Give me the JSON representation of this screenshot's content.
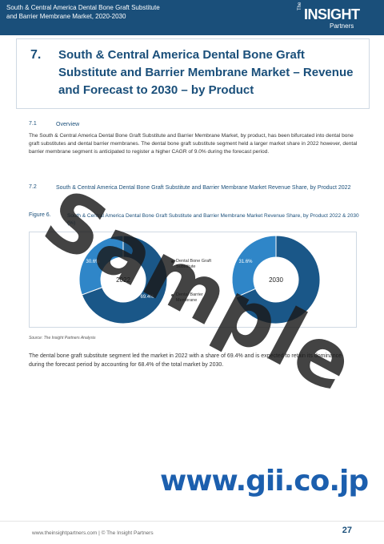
{
  "header": {
    "title": "South & Central America Dental Bone Graft Substitute and Barrier Membrane Market, 2020-2030",
    "logo_the": "The",
    "logo_insight": "INSIGHT",
    "logo_partners": "Partners"
  },
  "chapter": {
    "number": "7.",
    "title": "South & Central America Dental Bone Graft Substitute and Barrier Membrane Market – Revenue and Forecast to 2030 – by Product"
  },
  "section_71": {
    "number": "7.1",
    "title": "Overview",
    "text": "The South & Central America Dental Bone Graft Substitute and Barrier Membrane Market, by product, has been bifurcated into dental bone graft substitutes and dental barrier membranes. The dental bone graft substitute segment held a larger market share in 2022 however, dental barrier membrane segment is anticipated to register a higher CAGR of 9.0% during the forecast period."
  },
  "section_72": {
    "number": "7.2",
    "title": "South & Central America Dental Bone Graft Substitute and Barrier Membrane Market Revenue Share, by Product 2022"
  },
  "figure": {
    "label": "Figure 6.",
    "title": "South & Central America Dental Bone Graft Substitute and Barrier Membrane Market Revenue Share, by Product 2022 & 2030 (%)",
    "source": "Source: The Insight Partners Analysis"
  },
  "chart_data": [
    {
      "type": "pie",
      "center_label": "2022",
      "categories": [
        "Dental Bone Graft Substitute",
        "Dental Barrier Membrane"
      ],
      "values": [
        69.4,
        30.6
      ],
      "value_labels": [
        "69.4%",
        "30.6%"
      ],
      "colors": [
        "#1a5788",
        "#2f86c8"
      ]
    },
    {
      "type": "pie",
      "center_label": "2030",
      "categories": [
        "Dental Bone Graft Substitute",
        "Dental Barrier Membrane"
      ],
      "values": [
        68.4,
        31.6
      ],
      "value_labels": [
        "",
        "31.6%"
      ],
      "colors": [
        "#1a5788",
        "#2f86c8"
      ]
    }
  ],
  "legend": {
    "item1": "Dental Bone Graft Substitute",
    "item2": "Dental Barrier Membrane"
  },
  "conclusion": "The dental bone graft substitute segment led the market in 2022 with a share of 69.4% and is expected to retain its dominance during the forecast period by accounting for 68.4% of the total market by 2030.",
  "watermarks": {
    "sample": "Sample",
    "gii": "www.gii.co.jp"
  },
  "footer": {
    "text": "www.theinsightpartners.com | © The Insight Partners",
    "page": "27"
  }
}
